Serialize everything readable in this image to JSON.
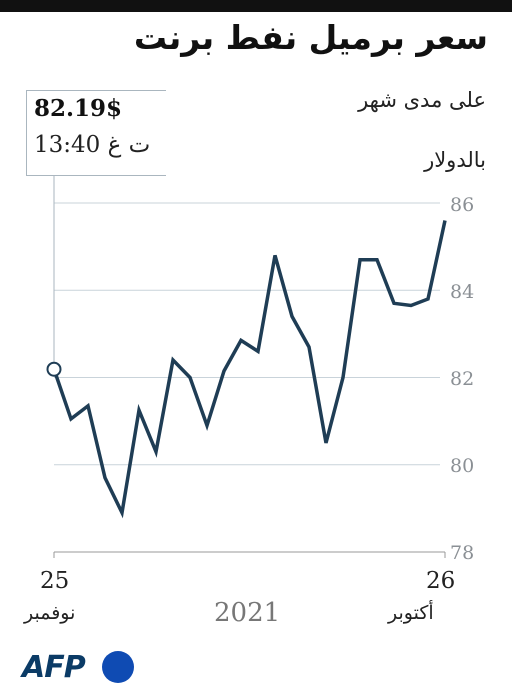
{
  "header": {
    "title": "سعر برميل نفط برنت",
    "subtitle": "على مدى شهر",
    "unit": "بالدولار"
  },
  "callout": {
    "price": "82.19$",
    "time": "13:40 ت غ"
  },
  "colors": {
    "line": "#1f3d55",
    "grid": "#c9d3da",
    "tick_text": "#8a8f94"
  },
  "footer": {
    "year": "2021",
    "logo": "AFP"
  },
  "chart_data": {
    "type": "line",
    "ylim": [
      78,
      86
    ],
    "yticks": [
      "78",
      "80",
      "82",
      "84",
      "86"
    ],
    "x_start": {
      "day": "26",
      "month": "أكتوبر"
    },
    "x_end": {
      "day": "25",
      "month": "نوفمبر"
    },
    "grid": "horizontal",
    "series": [
      {
        "values": [
          85.6,
          83.8,
          83.65,
          83.7,
          84.7,
          84.7,
          82.0,
          80.5,
          82.7,
          83.4,
          84.8,
          82.6,
          82.85,
          82.15,
          80.9,
          82.0,
          82.4,
          80.3,
          81.25,
          78.9,
          79.7,
          81.35,
          81.05,
          82.19
        ]
      }
    ]
  }
}
